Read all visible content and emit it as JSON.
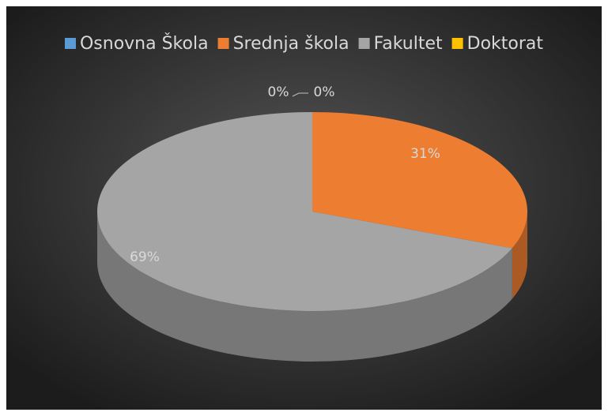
{
  "chart_data": {
    "type": "pie",
    "categories": [
      "Osnovna Škola",
      "Srednja škola",
      "Fakultet",
      "Doktorat"
    ],
    "values": [
      0,
      31,
      69,
      0
    ],
    "value_labels": [
      "0%",
      "31%",
      "69%",
      "0%"
    ],
    "colors": [
      "#5b9bd5",
      "#ed7d31",
      "#a5a5a5",
      "#ffc000"
    ],
    "legend": "top"
  }
}
